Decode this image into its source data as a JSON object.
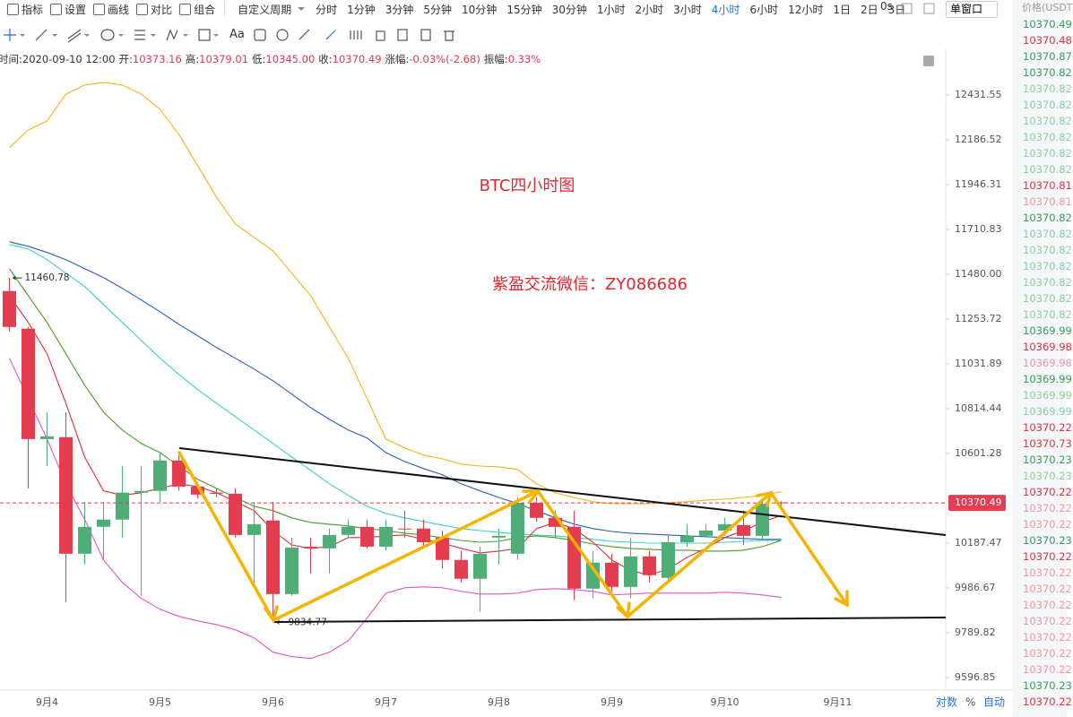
{
  "toolbar": {
    "tools": [
      "指标",
      "设置",
      "画线",
      "对比",
      "组合"
    ],
    "custom": "自定义周期",
    "periods": [
      "分时",
      "1分钟",
      "3分钟",
      "5分钟",
      "10分钟",
      "15分钟",
      "30分钟",
      "1小时",
      "2小时",
      "3小时",
      "4小时",
      "6小时",
      "12小时",
      "1日",
      "2日",
      "3日"
    ],
    "active_period": 10,
    "timer": "0s",
    "window": "单窗口",
    "text_tool": "Aa"
  },
  "info": [
    {
      "label": "时间:",
      "value": "2020-09-10 12:00"
    },
    {
      "label": "开:",
      "value": "10373.16"
    },
    {
      "label": "高:",
      "value": "10379.01"
    },
    {
      "label": "低:",
      "value": "10345.00"
    },
    {
      "label": "收:",
      "value": "10370.49"
    },
    {
      "label": "涨幅:",
      "value": "-0.03%(-2.68)"
    },
    {
      "label": "振幅:",
      "value": "0.33%"
    }
  ],
  "axis_options": [
    "对数",
    "%",
    "自动"
  ],
  "price_list": {
    "header": "价格(USDT",
    "items": [
      "10370.49",
      "10370.48",
      "10370.87",
      "10370.82",
      "10370.82",
      "10370.82",
      "10370.82",
      "10370.82",
      "10370.82",
      "10370.82",
      "10370.81",
      "10370.81",
      "10370.82",
      "10370.82",
      "10370.82",
      "10370.82",
      "10370.82",
      "10370.82",
      "10370.82",
      "10369.99",
      "10369.98",
      "10369.98",
      "10369.99",
      "10369.99",
      "10369.99",
      "10370.22",
      "10370.73",
      "10370.23",
      "10370.23",
      "10370.22",
      "10370.22",
      "10370.22",
      "10370.23",
      "10370.22",
      "10370.22",
      "10370.22",
      "10370.22",
      "10370.22",
      "10370.22",
      "10370.22",
      "10370.22",
      "10370.23",
      "10370.22"
    ],
    "colors": [
      "#3a9a5a",
      "#d9333f",
      "#3a9a5a",
      "#3a9a5a",
      "#8fcca0",
      "#8fcca0",
      "#8fcca0",
      "#8fcca0",
      "#8fcca0",
      "#8fcca0",
      "#d9333f",
      "#e99aa0",
      "#3a9a5a",
      "#8fcca0",
      "#8fcca0",
      "#8fcca0",
      "#8fcca0",
      "#8fcca0",
      "#8fcca0",
      "#3a9a5a",
      "#d9333f",
      "#e99aa0",
      "#3a9a5a",
      "#8fcca0",
      "#8fcca0",
      "#d9333f",
      "#d9333f",
      "#3a9a5a",
      "#8fcca0",
      "#d9333f",
      "#e99aa0",
      "#e99aa0",
      "#3a9a5a",
      "#d9333f",
      "#e99aa0",
      "#e99aa0",
      "#e99aa0",
      "#e99aa0",
      "#e99aa0",
      "#e99aa0",
      "#e99aa0",
      "#3a9a5a",
      "#d9333f"
    ]
  },
  "chart_data": {
    "type": "candlestick",
    "title": "BTC四小时图",
    "annotation": "紫盈交流微信：ZY086686",
    "log_scale": true,
    "up_color": "#4fae78",
    "down_color": "#e43d4f",
    "categories": [
      null,
      null,
      "9月4",
      null,
      null,
      null,
      null,
      null,
      "9月5",
      null,
      null,
      null,
      null,
      null,
      "9月6",
      null,
      null,
      null,
      null,
      null,
      "9月7",
      null,
      null,
      null,
      null,
      null,
      "9月8",
      null,
      null,
      null,
      null,
      null,
      "9月9",
      null,
      null,
      null,
      null,
      null,
      "9月10",
      null,
      null,
      null,
      null,
      null,
      "9月11",
      null,
      null,
      null,
      null,
      null
    ],
    "open": [
      11394,
      11205,
      10669,
      10678,
      10139,
      10261,
      10294,
      10418,
      10426,
      10568,
      10446,
      10418,
      10413,
      10224,
      10290,
      9959,
      10171,
      10163,
      10224,
      10261,
      10171,
      10253,
      10253,
      10212,
      10111,
      10027,
      10212,
      10139,
      10371,
      10302,
      10261,
      9983,
      10099,
      9991,
      10127,
      10031,
      10191,
      10220,
      10244,
      10269,
      10220,
      10373.16,
      null,
      null,
      null,
      null,
      null,
      null,
      null,
      null
    ],
    "high": [
      11460.78,
      11214,
      10797,
      10797,
      10376,
      10376,
      10542,
      10542,
      10605,
      10593,
      10459,
      10438,
      10438,
      10376,
      10376,
      10212,
      10212,
      10253,
      10294,
      10294,
      10294,
      10335,
      10294,
      10244,
      10151,
      10171,
      10253,
      10396,
      10396,
      10335,
      10335,
      10151,
      10139,
      10212,
      10151,
      10220,
      10273,
      10273,
      10302,
      10335,
      10384,
      10379.01,
      null,
      null,
      null,
      null,
      null,
      null,
      null,
      null
    ],
    "low": [
      11192,
      10438,
      10542,
      9924,
      10091,
      10111,
      10212,
      9952,
      10376,
      10426,
      10392,
      10396,
      10212,
      10011,
      9834.77,
      9952,
      10051,
      10051,
      10212,
      10163,
      10151,
      10212,
      10171,
      10071,
      10011,
      9881,
      10091,
      10111,
      10285,
      10212,
      9932,
      9940,
      9971,
      9940,
      10011,
      10011,
      10171,
      10212,
      10220,
      10179,
      10204,
      10345,
      null,
      null,
      null,
      null,
      null,
      null,
      null,
      null
    ],
    "close": [
      11214,
      10669,
      10682,
      10139,
      10261,
      10294,
      10418,
      10426,
      10568,
      10446,
      10409,
      10413,
      10224,
      10273,
      9959,
      10167,
      10163,
      10224,
      10261,
      10171,
      10261,
      10249,
      10191,
      10111,
      10027,
      10139,
      10220,
      10371,
      10302,
      10261,
      9983,
      10099,
      9991,
      10127,
      10043,
      10191,
      10220,
      10244,
      10273,
      10220,
      10367,
      10370.49,
      null,
      null,
      null,
      null,
      null,
      null,
      null,
      null
    ],
    "indicators": [
      {
        "color": "#f4b41a",
        "values": [
          12143,
          12240,
          12289,
          12436,
          12486,
          12501,
          12486,
          12436,
          12353,
          12216,
          12047,
          11880,
          11739,
          11669,
          11600,
          11484,
          11371,
          11214,
          11059,
          10862,
          10669,
          10627,
          10593,
          10576,
          10551,
          10542,
          10538,
          10526,
          10459,
          10417,
          10396,
          10376,
          10367,
          10367,
          10367,
          10372,
          10376,
          10384,
          10388,
          10396,
          10405,
          10422,
          null,
          null,
          null,
          null,
          null,
          null,
          null,
          null
        ]
      },
      {
        "color": "#e055c8",
        "values": [
          11059,
          10862,
          10669,
          10459,
          10294,
          10111,
          10011,
          9940,
          9892,
          9861,
          9841,
          9825,
          9802,
          9767,
          9705,
          9686,
          9678,
          9705,
          9755,
          9853,
          9963,
          9987,
          9991,
          9987,
          9971,
          9959,
          9959,
          9963,
          9979,
          9983,
          9979,
          9971,
          9955,
          9959,
          9963,
          9963,
          9963,
          9963,
          9967,
          9963,
          9955,
          9944,
          null,
          null,
          null,
          null,
          null,
          null,
          null,
          null
        ]
      },
      {
        "color": "#2b5fb0",
        "values": [
          11646,
          11623,
          11591,
          11554,
          11508,
          11462,
          11408,
          11349,
          11290,
          11227,
          11170,
          11112,
          11059,
          11006,
          10949,
          10884,
          10819,
          10763,
          10712,
          10674,
          10605,
          10563,
          10530,
          10501,
          10459,
          10426,
          10396,
          10367,
          10335,
          10302,
          10273,
          10253,
          10240,
          10232,
          10228,
          10224,
          10220,
          10216,
          10212,
          10208,
          10204,
          10204,
          null,
          null,
          null,
          null,
          null,
          null,
          null,
          null
        ]
      },
      {
        "color": "#3cd0c0",
        "values": [
          11632,
          11609,
          11554,
          11485,
          11417,
          11326,
          11236,
          11148,
          11059,
          10980,
          10906,
          10840,
          10776,
          10712,
          10648,
          10584,
          10522,
          10459,
          10405,
          10355,
          10322,
          10302,
          10285,
          10269,
          10253,
          10244,
          10236,
          10228,
          10224,
          10220,
          10212,
          10204,
          10195,
          10191,
          10187,
          10187,
          10187,
          10187,
          10191,
          10195,
          10199,
          10199,
          null,
          null,
          null,
          null,
          null,
          null,
          null,
          null
        ]
      },
      {
        "color": "#4a9a2a",
        "values": [
          11507,
          11371,
          11236,
          11081,
          10927,
          10797,
          10712,
          10648,
          10605,
          10542,
          10480,
          10438,
          10396,
          10355,
          10335,
          10302,
          10281,
          10273,
          10265,
          10253,
          10244,
          10232,
          10224,
          10212,
          10199,
          10191,
          10195,
          10212,
          10220,
          10212,
          10199,
          10183,
          10171,
          10163,
          10159,
          10155,
          10155,
          10151,
          10151,
          10155,
          10171,
          10199,
          null,
          null,
          null,
          null,
          null,
          null,
          null,
          null
        ]
      },
      {
        "color": "#e02a3a",
        "values": [
          11371,
          11236,
          11081,
          10840,
          10584,
          10426,
          10405,
          10418,
          10438,
          10459,
          10446,
          10418,
          10376,
          10335,
          10244,
          10179,
          10163,
          10171,
          10212,
          10212,
          10220,
          10224,
          10204,
          10187,
          10163,
          10143,
          10151,
          10163,
          10253,
          10281,
          10253,
          10191,
          10111,
          10063,
          10043,
          10071,
          10123,
          10163,
          10212,
          10244,
          10281,
          10314,
          null,
          null,
          null,
          null,
          null,
          null,
          null,
          null
        ]
      }
    ],
    "ylim": [
      9543,
      12686
    ],
    "yticks": [
      12431.55,
      12186.52,
      11946.31,
      11710.83,
      {
        "value": 11480,
        "label": "11480.00"
      },
      11253.72,
      11031.89,
      10814.44,
      10601.28,
      10187.47,
      9986.67,
      9789.82,
      9596.85
    ]
  }
}
